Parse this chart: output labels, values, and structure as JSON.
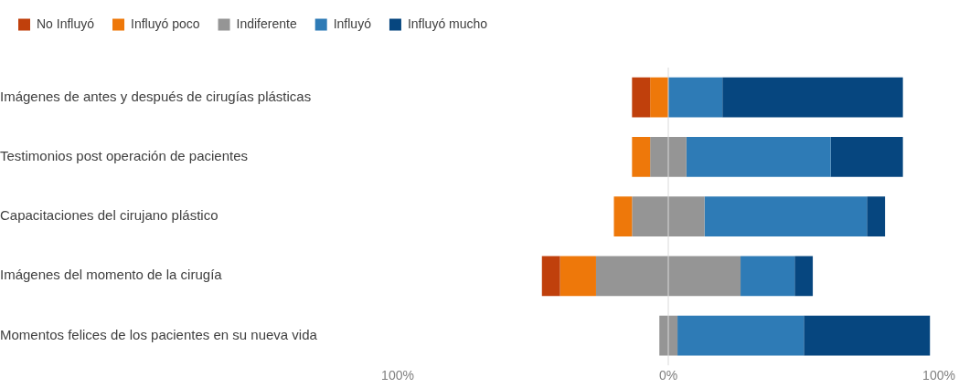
{
  "chart_data": {
    "type": "bar",
    "orientation": "horizontal",
    "legend": "top left",
    "grid": false,
    "categories": [
      "Imágenes de antes y después de cirugías plásticas",
      "Testimonios post operación de pacientes",
      "Capacitaciones del cirujano plástico",
      "Imágenes del momento de la cirugía",
      "Momentos felices de los pacientes en su nueva vida"
    ],
    "series": [
      {
        "name": "No Influyó",
        "color": "#c0400c",
        "base": [
          -13.4,
          null,
          null,
          -46.7,
          null
        ],
        "values": [
          6.7,
          null,
          null,
          6.7,
          null
        ]
      },
      {
        "name": "Influyó poco",
        "color": "#ee780a",
        "base": [
          -6.7,
          -13.4,
          -20.1,
          -40,
          null
        ],
        "values": [
          6.7,
          6.7,
          6.7,
          13.3,
          null
        ]
      },
      {
        "name": "Indiferente",
        "color": "#959595",
        "base": [
          null,
          -6.7,
          -13.4,
          -26.7,
          -3.3
        ],
        "values": [
          null,
          13.4,
          26.8,
          53.4,
          6.7
        ]
      },
      {
        "name": "Influyó",
        "color": "#2e7bb6",
        "base": [
          0,
          6.7,
          13.4,
          26.7,
          3.4
        ],
        "values": [
          20,
          53.3,
          60,
          20,
          46.7
        ]
      },
      {
        "name": "Influyó mucho",
        "color": "#06467f",
        "base": [
          20,
          60,
          73.4,
          46.7,
          50.1
        ],
        "values": [
          66.7,
          26.7,
          6.7,
          6.7,
          46.6
        ]
      }
    ],
    "xlim": [
      -100,
      100
    ],
    "xticks": [
      {
        "value": -100,
        "label": "100%"
      },
      {
        "value": 0,
        "label": "0%"
      },
      {
        "value": 100,
        "label": "100%"
      }
    ],
    "ref_lines": [
      {
        "axis": "x",
        "value": 0,
        "color": "#d9d9d9"
      }
    ]
  }
}
